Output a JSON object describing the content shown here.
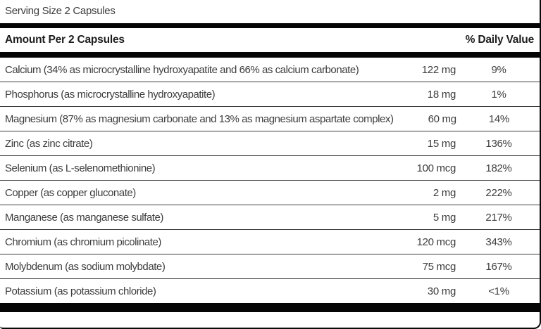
{
  "label": {
    "serving_size": "Serving Size 2 Capsules",
    "header": {
      "amount_col": "Amount Per 2 Capsules",
      "dv_col": "% Daily Value"
    },
    "rows": [
      {
        "nutrient": "Calcium (34% as microcrystalline hydroxyapatite and 66% as calcium carbonate)",
        "amount": "122 mg",
        "dv": "9%"
      },
      {
        "nutrient": "Phosphorus (as microcrystalline hydroxyapatite)",
        "amount": "18 mg",
        "dv": "1%"
      },
      {
        "nutrient": "Magnesium (87% as magnesium carbonate and 13% as magnesium aspartate complex)",
        "amount": "60 mg",
        "dv": "14%"
      },
      {
        "nutrient": "Zinc (as zinc citrate)",
        "amount": "15 mg",
        "dv": "136%"
      },
      {
        "nutrient": "Selenium (as L-selenomethionine)",
        "amount": "100 mcg",
        "dv": "182%"
      },
      {
        "nutrient": "Copper (as copper gluconate)",
        "amount": "2 mg",
        "dv": "222%"
      },
      {
        "nutrient": "Manganese (as manganese sulfate)",
        "amount": "5 mg",
        "dv": "217%"
      },
      {
        "nutrient": "Chromium (as chromium picolinate)",
        "amount": "120 mcg",
        "dv": "343%"
      },
      {
        "nutrient": "Molybdenum (as sodium molybdate)",
        "amount": "75 mcg",
        "dv": "167%"
      },
      {
        "nutrient": "Potassium (as potassium chloride)",
        "amount": "30 mg",
        "dv": "<1%"
      }
    ],
    "colors": {
      "text": "#3d3d3d",
      "bold_text": "#1d1d1d",
      "bar": "#050505",
      "separator": "#3c3c3c",
      "background": "#ffffff"
    }
  }
}
